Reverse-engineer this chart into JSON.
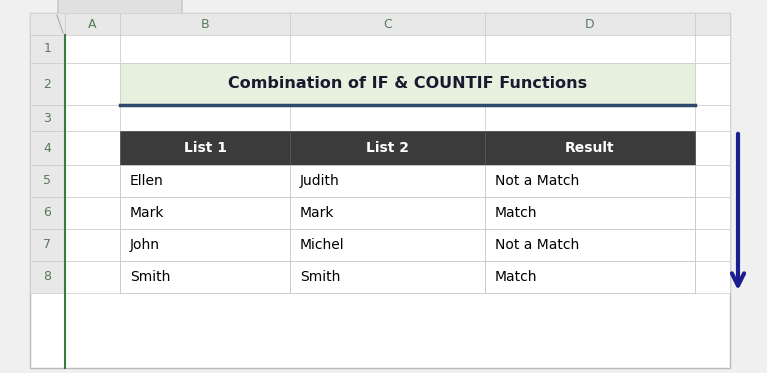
{
  "title": "Combination of IF & COUNTIF Functions",
  "title_bg": "#e8f0e0",
  "title_border": "#2d4a6b",
  "headers": [
    "List 1",
    "List 2",
    "Result"
  ],
  "header_bg": "#3b3b3b",
  "header_text_color": "#ffffff",
  "rows": [
    [
      "Ellen",
      "Judith",
      "Not a Match"
    ],
    [
      "Mark",
      "Mark",
      "Match"
    ],
    [
      "John",
      "Michel",
      "Not a Match"
    ],
    [
      "Smith",
      "Smith",
      "Match"
    ]
  ],
  "row_bg": "#ffffff",
  "row_text_color": "#000000",
  "col_header_bg": "#e8e8e8",
  "col_header_text": "#5a7a5a",
  "excel_col_headers": [
    "A",
    "B",
    "C",
    "D"
  ],
  "excel_row_headers": [
    "1",
    "2",
    "3",
    "4",
    "5",
    "6",
    "7",
    "8"
  ],
  "arrow_color": "#1a1e8f",
  "bg_color": "#ffffff",
  "outer_bg": "#f0f0f0",
  "cell_line_color": "#c8c8c8",
  "spreadsheet_bg": "#ffffff",
  "green_line_color": "#3a7a3a",
  "tab_bg": "#e0e0e0"
}
